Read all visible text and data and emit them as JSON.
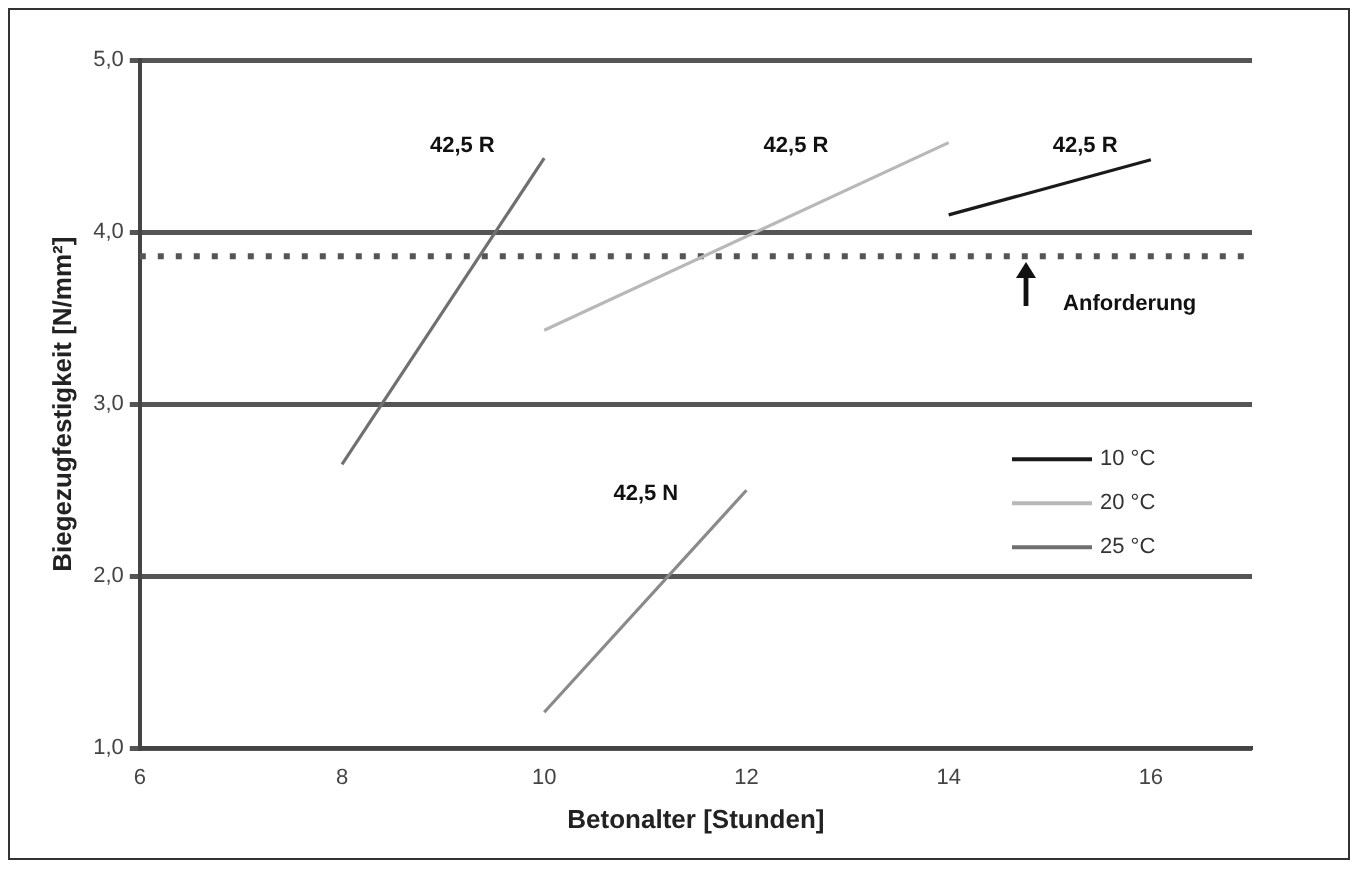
{
  "chart_data": {
    "type": "line",
    "xlabel": "Betonalter [Stunden]",
    "ylabel": "Biegezugfestigkeit [N/mm²]",
    "xlim": [
      6,
      17
    ],
    "xticks": [
      6,
      8,
      10,
      12,
      14,
      16
    ],
    "ylim": [
      1,
      5
    ],
    "yticks": [
      {
        "value": 1,
        "label": "1,0"
      },
      {
        "value": 2,
        "label": "2,0"
      },
      {
        "value": 3,
        "label": "3,0"
      },
      {
        "value": 4,
        "label": "4,0"
      },
      {
        "value": 5,
        "label": "5,0"
      }
    ],
    "grid": "y",
    "legend": "right",
    "marker": "none",
    "line_style": "solid",
    "series": [
      {
        "name": "10 °C",
        "color": "#1a1a1a",
        "x": [
          14,
          16
        ],
        "values": [
          4.1,
          4.42
        ]
      },
      {
        "name": "20 °C",
        "color": "#b8b8b8",
        "x": [
          10,
          14
        ],
        "values": [
          3.43,
          4.52
        ]
      },
      {
        "name": "25 °C",
        "color": "#707070",
        "x": [
          8,
          10
        ],
        "values": [
          2.65,
          4.43
        ]
      },
      {
        "color": "#8a8a8a",
        "x": [
          10,
          12
        ],
        "values": [
          1.21,
          2.5
        ]
      }
    ],
    "ref_lines": [
      {
        "axis": "y",
        "value": 3.86,
        "color": "#555555",
        "line_style": "dotted"
      }
    ],
    "annotations": [
      "42,5 R",
      "42,5 R",
      "42,5 R",
      "42,5 N",
      "Anforderung"
    ]
  }
}
